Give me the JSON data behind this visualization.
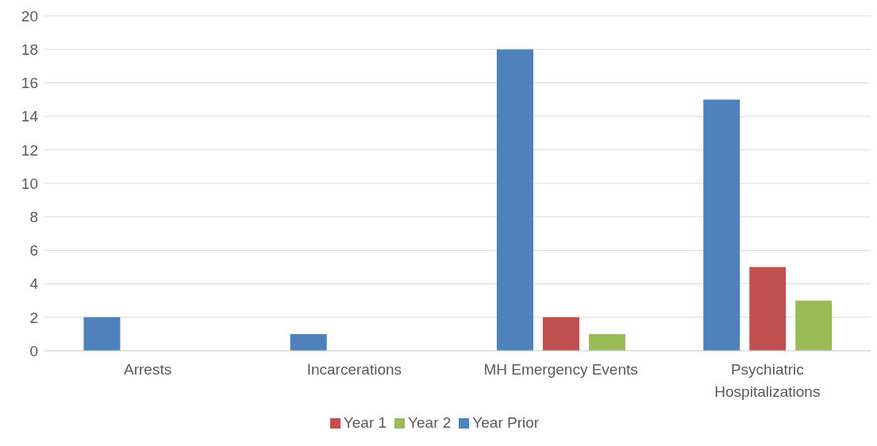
{
  "chart_data": {
    "type": "bar",
    "categories": [
      "Arrests",
      "Incarcerations",
      "MH Emergency Events",
      "Psychiatric Hospitalizations"
    ],
    "series": [
      {
        "name": "Year Prior",
        "color": "#4f81bd",
        "values": [
          2,
          1,
          18,
          15
        ]
      },
      {
        "name": "Year 1",
        "color": "#c0504d",
        "values": [
          0,
          0,
          2,
          5
        ]
      },
      {
        "name": "Year 2",
        "color": "#9bbb59",
        "values": [
          0,
          0,
          1,
          3
        ]
      }
    ],
    "ylim": [
      0,
      20
    ],
    "yticks": [
      0,
      2,
      4,
      6,
      8,
      10,
      12,
      14,
      16,
      18,
      20
    ],
    "grid": "y",
    "legend": "bottom"
  }
}
